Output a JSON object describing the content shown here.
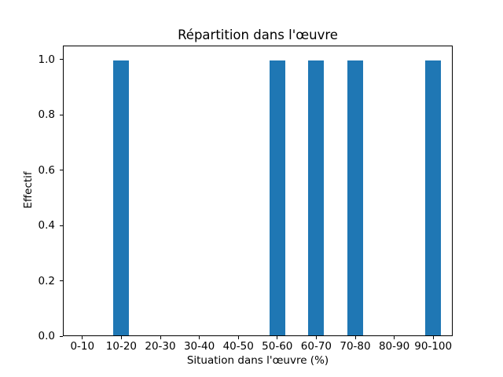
{
  "figure": {
    "background": "#ffffff",
    "text_color": "#000000"
  },
  "chart_data": {
    "type": "bar",
    "title": "Répartition dans l'œuvre",
    "xlabel": "Situation dans l'œuvre (%)",
    "ylabel": "Effectif",
    "categories": [
      "0-10",
      "10-20",
      "20-30",
      "30-40",
      "40-50",
      "50-60",
      "60-70",
      "70-80",
      "80-90",
      "90-100"
    ],
    "values": [
      0,
      1,
      0,
      0,
      0,
      1,
      1,
      1,
      0,
      1
    ],
    "ytick_labels": [
      "0.0",
      "0.2",
      "0.4",
      "0.6",
      "0.8",
      "1.0"
    ],
    "ylim": [
      0,
      1.05
    ],
    "bar_color": "#1f77b4",
    "bar_width_fraction": 0.4,
    "grid": false,
    "legend_position": "none"
  }
}
